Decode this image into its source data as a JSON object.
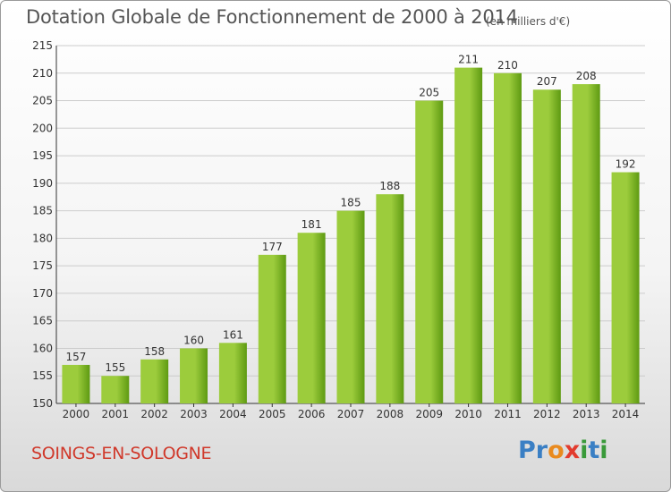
{
  "chart_data": {
    "type": "bar",
    "title": "Dotation Globale de Fonctionnement de 2000 à 2014",
    "subtitle": "(en milliers d'€)",
    "xlabel": "",
    "ylabel": "",
    "categories": [
      "2000",
      "2001",
      "2002",
      "2003",
      "2004",
      "2005",
      "2006",
      "2007",
      "2008",
      "2009",
      "2010",
      "2011",
      "2012",
      "2013",
      "2014"
    ],
    "values": [
      157,
      155,
      158,
      160,
      161,
      177,
      181,
      185,
      188,
      205,
      211,
      210,
      207,
      208,
      192
    ],
    "ylim": [
      150,
      215
    ],
    "yticks": [
      150,
      155,
      160,
      165,
      170,
      175,
      180,
      185,
      190,
      195,
      200,
      205,
      210,
      215
    ],
    "grid": true,
    "legend": "none",
    "colors": {
      "bar_light": "#9ccc3c",
      "bar_dark": "#5e9a12",
      "grid": "#cccccc"
    }
  },
  "footer": {
    "commune": "SOINGS-EN-SOLOGNE",
    "logo_letters": [
      {
        "ch": "P",
        "color": "#3a7fc4"
      },
      {
        "ch": "r",
        "color": "#3a7fc4"
      },
      {
        "ch": "o",
        "color": "#e98a1e"
      },
      {
        "ch": "x",
        "color": "#e23b2e"
      },
      {
        "ch": "i",
        "color": "#3a9a3a"
      },
      {
        "ch": "t",
        "color": "#3a7fc4"
      },
      {
        "ch": "i",
        "color": "#3a9a3a"
      }
    ]
  }
}
